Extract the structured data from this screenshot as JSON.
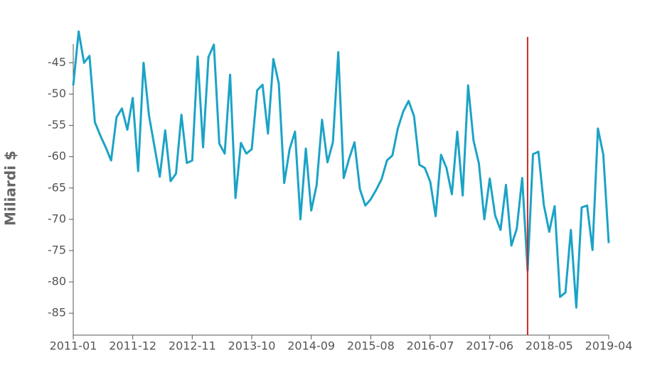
{
  "chart_data": {
    "type": "line",
    "y_label": "Miliardi $",
    "x": [
      "2011-01",
      "2011-02",
      "2011-03",
      "2011-04",
      "2011-05",
      "2011-06",
      "2011-07",
      "2011-08",
      "2011-09",
      "2011-10",
      "2011-11",
      "2011-12",
      "2012-01",
      "2012-02",
      "2012-03",
      "2012-04",
      "2012-05",
      "2012-06",
      "2012-07",
      "2012-08",
      "2012-09",
      "2012-10",
      "2012-11",
      "2012-12",
      "2013-01",
      "2013-02",
      "2013-03",
      "2013-04",
      "2013-05",
      "2013-06",
      "2013-07",
      "2013-08",
      "2013-09",
      "2013-10",
      "2013-11",
      "2013-12",
      "2014-01",
      "2014-02",
      "2014-03",
      "2014-04",
      "2014-05",
      "2014-06",
      "2014-07",
      "2014-08",
      "2014-09",
      "2014-10",
      "2014-11",
      "2014-12",
      "2015-01",
      "2015-02",
      "2015-03",
      "2015-04",
      "2015-05",
      "2015-06",
      "2015-07",
      "2015-08",
      "2015-09",
      "2015-10",
      "2015-11",
      "2015-12",
      "2016-01",
      "2016-02",
      "2016-03",
      "2016-04",
      "2016-05",
      "2016-06",
      "2016-07",
      "2016-08",
      "2016-09",
      "2016-10",
      "2016-11",
      "2016-12",
      "2017-01",
      "2017-02",
      "2017-03",
      "2017-04",
      "2017-05",
      "2017-06",
      "2017-07",
      "2017-08",
      "2017-09",
      "2017-10",
      "2017-11",
      "2017-12",
      "2018-01",
      "2018-02",
      "2018-03",
      "2018-04",
      "2018-05",
      "2018-06",
      "2018-07",
      "2018-08",
      "2018-09",
      "2018-10",
      "2018-11",
      "2018-12",
      "2019-01",
      "2019-02",
      "2019-03",
      "2019-04"
    ],
    "values": [
      -48.6,
      -40.0,
      -45.0,
      -43.9,
      -54.5,
      -56.6,
      -58.5,
      -60.6,
      -53.7,
      -52.3,
      -55.7,
      -50.6,
      -62.3,
      -45.0,
      -53.4,
      -58.3,
      -63.2,
      -55.8,
      -63.9,
      -62.7,
      -53.3,
      -61.0,
      -60.6,
      -44.0,
      -58.5,
      -44.1,
      -42.1,
      -57.9,
      -59.5,
      -46.9,
      -66.6,
      -57.8,
      -59.5,
      -58.8,
      -49.4,
      -48.5,
      -56.3,
      -44.4,
      -48.3,
      -64.2,
      -58.8,
      -56.0,
      -70.0,
      -58.7,
      -68.6,
      -64.5,
      -54.1,
      -60.9,
      -57.7,
      -43.3,
      -63.4,
      -60.3,
      -57.7,
      -65.2,
      -67.8,
      -66.8,
      -65.3,
      -63.6,
      -60.6,
      -59.8,
      -55.5,
      -52.8,
      -51.1,
      -53.5,
      -61.3,
      -61.8,
      -64.0,
      -69.5,
      -59.7,
      -61.8,
      -66.0,
      -56.0,
      -66.2,
      -48.6,
      -57.4,
      -61.1,
      -70.0,
      -63.5,
      -69.4,
      -71.7,
      -64.5,
      -74.2,
      -71.5,
      -63.4,
      -78.2,
      -59.6,
      -59.2,
      -67.7,
      -72.0,
      -67.9,
      -82.4,
      -81.7,
      -71.7,
      -84.1,
      -68.1,
      -67.8,
      -74.9,
      -55.5,
      -59.7,
      -73.8
    ],
    "color": "#1ba3c6",
    "xticks": [
      "2011-01",
      "2011-12",
      "2012-11",
      "2013-10",
      "2014-09",
      "2015-08",
      "2016-07",
      "2017-06",
      "2018-05",
      "2019-04"
    ],
    "ylim": [
      -88.5,
      -42
    ],
    "yticks": [
      -45,
      -50,
      -55,
      -60,
      -65,
      -70,
      -75,
      -80,
      -85
    ],
    "vline_x": "2018-01",
    "vline_color": "#c62828"
  }
}
